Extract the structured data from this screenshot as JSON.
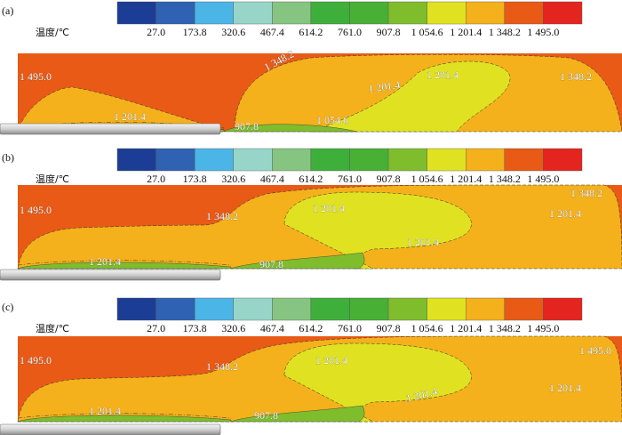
{
  "chart_data": {
    "type": "heatmap",
    "subtype": "filled-contour",
    "colorbar": {
      "title": "温度/℃",
      "levels": [
        "27.0",
        "173.8",
        "320.6",
        "467.4",
        "614.2",
        "761.0",
        "907.8",
        "1 054.6",
        "1 201.4",
        "1 348.2",
        "1 495.0"
      ],
      "colors": [
        "#1c3d96",
        "#2f62b2",
        "#4bb5e7",
        "#98d5c9",
        "#86c481",
        "#3faf3b",
        "#48b035",
        "#7fbd2d",
        "#e0e221",
        "#f4b11b",
        "#e85a16",
        "#e4241f"
      ]
    },
    "panels": [
      {
        "id": "(a)",
        "contour_labels": [
          "1 495.0",
          "1 348.2",
          "1 348.2",
          "1 201.4",
          "1 201.4",
          "1 201.4",
          "907.8",
          "1 054.6"
        ]
      },
      {
        "id": "(b)",
        "contour_labels": [
          "1 495.0",
          "1 348.2",
          "1 348.2",
          "1 201.4",
          "1 201.4",
          "1 201.4",
          "1 201.4",
          "907.8"
        ]
      },
      {
        "id": "(c)",
        "contour_labels": [
          "1 495.0",
          "1 495.0",
          "1 348.2",
          "1 201.4",
          "1 201.4",
          "1 201.4",
          "1 201.4",
          "907.8"
        ]
      }
    ]
  }
}
